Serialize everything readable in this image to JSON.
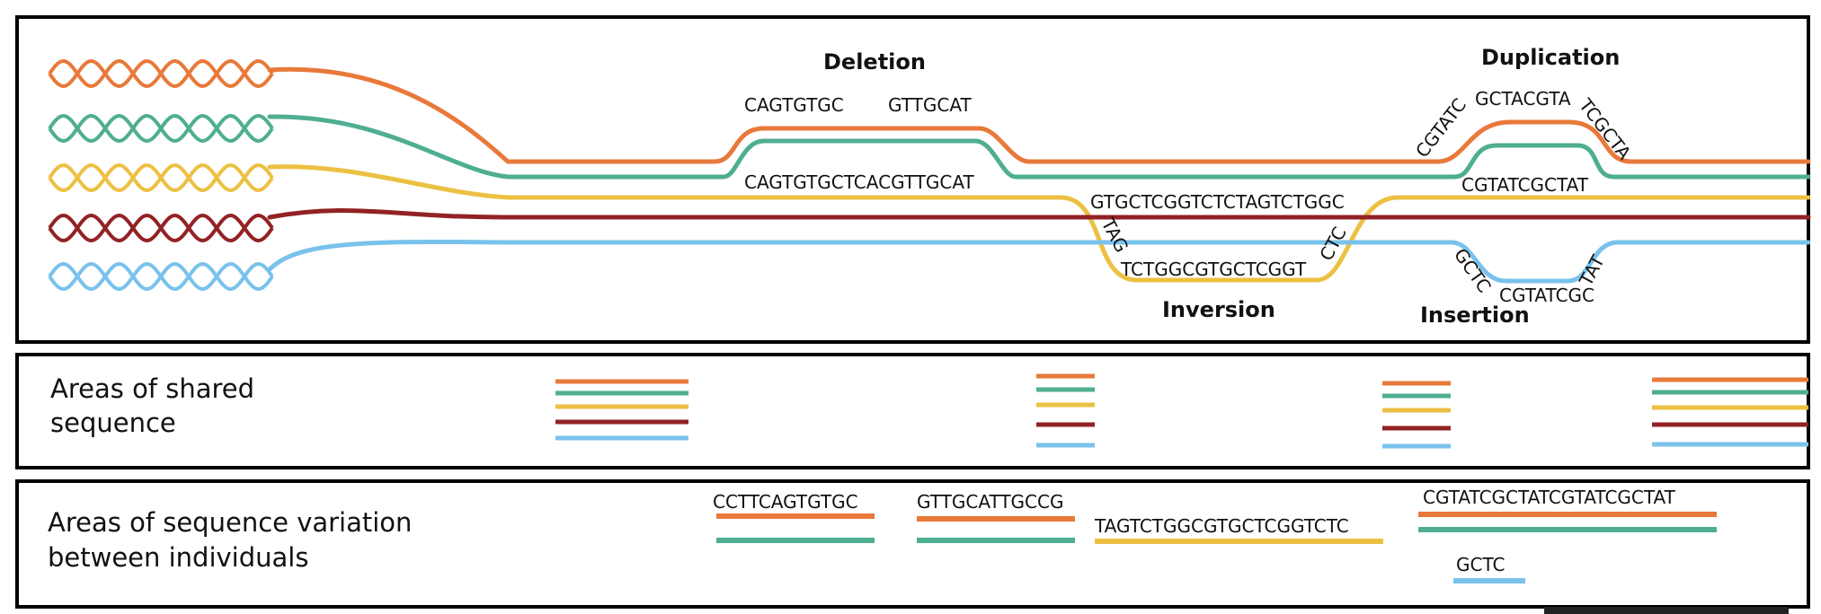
{
  "colors": {
    "orange": "#e8793a",
    "green": "#4fae92",
    "yellow": "#ecc042",
    "darkred": "#922224",
    "blue": "#79c2ec",
    "black": "#000000"
  },
  "individuals": [
    "orange",
    "green",
    "yellow",
    "darkred",
    "blue"
  ],
  "top_panel": {
    "deletion": {
      "title": "Deletion",
      "left_seq": "CAGTGTGC",
      "right_seq": "GTTGCAT",
      "ref_seq": "CAGTGTGCTCACGTTGCAT"
    },
    "inversion": {
      "title": "Inversion",
      "top_seq": "GTGCTCGGTCTCTAGTCTGGC",
      "left_seq": "TAG",
      "inv_seq": "TCTGGCGTGCTCGGT",
      "right_seq": "CTC"
    },
    "duplication": {
      "title": "Duplication",
      "left_seq": "CGTATC",
      "mid_seq": "GCTACGTA",
      "right_seq": "TCGCTA",
      "ref_seq": "CGTATCGCTAT"
    },
    "insertion": {
      "title": "Insertion",
      "left_seq": "GCTC",
      "mid_seq": "CGTATCGC",
      "right_seq": "TAT"
    }
  },
  "shared_panel": {
    "label_line1": "Areas of shared",
    "label_line2": "sequence"
  },
  "variation_panel": {
    "label_line1": "Areas of sequence variation",
    "label_line2": "between individuals",
    "deletion_orange_seq": "CCTTCAGTGTGC",
    "deletion_orange_seq2": "GTTGCATTGCCG",
    "inversion_yellow_seq": "TAGTCTGGCGTGCTCGGTCTC",
    "duplication_orange_seq": "CGTATCGCTATCGTATCGCTAT",
    "insertion_blue_seq": "GCTC"
  }
}
